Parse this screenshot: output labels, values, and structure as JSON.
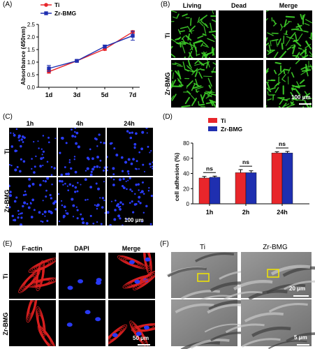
{
  "panels": {
    "A": "(A)",
    "B": "(B)",
    "C": "(C)",
    "D": "(D)",
    "E": "(E)",
    "F": "(F)"
  },
  "colors": {
    "ti": "#e8262b",
    "zr": "#1f2fb0",
    "fluor_green": "#3fd12a",
    "nuclei_blue": "#2a3cff",
    "actin_red": "#e02020"
  },
  "chart_A": {
    "legend": [
      "Ti",
      "Zr-BMG"
    ],
    "ylabel": "Absorbance (450nm)",
    "yticks": [
      "0.0",
      "0.5",
      "1.0",
      "1.5",
      "2.0",
      "2.5"
    ],
    "xticks": [
      "1d",
      "3d",
      "5d",
      "7d"
    ]
  },
  "panel_B": {
    "headers": [
      "Living",
      "Dead",
      "Merge"
    ],
    "rows": [
      "Ti",
      "Zr-BMG"
    ],
    "scalebar": "100 μm"
  },
  "panel_C": {
    "headers": [
      "1h",
      "4h",
      "24h"
    ],
    "rows": [
      "Ti",
      "Zr-BMG"
    ],
    "scalebar": "100 μm"
  },
  "chart_D": {
    "legend": [
      "Ti",
      "Zr-BMG"
    ],
    "ylabel": "cell adhesion (%)",
    "yticks": [
      "0",
      "20",
      "40",
      "60",
      "80"
    ],
    "xticks": [
      "1h",
      "2h",
      "24h"
    ],
    "sig": [
      "ns",
      "ns",
      "ns"
    ]
  },
  "panel_E": {
    "headers": [
      "F-actin",
      "DAPI",
      "Merge"
    ],
    "rows": [
      "Ti",
      "Zr-BMG"
    ],
    "scalebar": "50 μm"
  },
  "panel_F": {
    "headers": [
      "Ti",
      "Zr-BMG"
    ],
    "scalebar_top": "20 μm",
    "scalebar_bottom": "5 μm"
  },
  "chart_data": [
    {
      "type": "line",
      "x": [
        "1d",
        "3d",
        "5d",
        "7d"
      ],
      "series": [
        {
          "name": "Ti",
          "values": [
            0.62,
            1.05,
            1.52,
            2.2
          ],
          "errors": [
            0.06,
            0.04,
            0.05,
            0.05
          ]
        },
        {
          "name": "Zr-BMG",
          "values": [
            0.75,
            1.05,
            1.62,
            2.05
          ],
          "errors": [
            0.12,
            0.05,
            0.06,
            0.18
          ]
        }
      ],
      "ylabel": "Absorbance (450nm)",
      "ylim": [
        0,
        2.5
      ]
    },
    {
      "type": "bar",
      "categories": [
        "1h",
        "2h",
        "24h"
      ],
      "series": [
        {
          "name": "Ti",
          "values": [
            34,
            41,
            67
          ],
          "errors": [
            2,
            4,
            1.5
          ]
        },
        {
          "name": "Zr-BMG",
          "values": [
            35,
            41,
            67
          ],
          "errors": [
            1.5,
            2.5,
            2
          ]
        }
      ],
      "ylabel": "cell adhesion (%)",
      "ylim": [
        0,
        80
      ],
      "annotations": [
        "ns",
        "ns",
        "ns"
      ]
    }
  ]
}
